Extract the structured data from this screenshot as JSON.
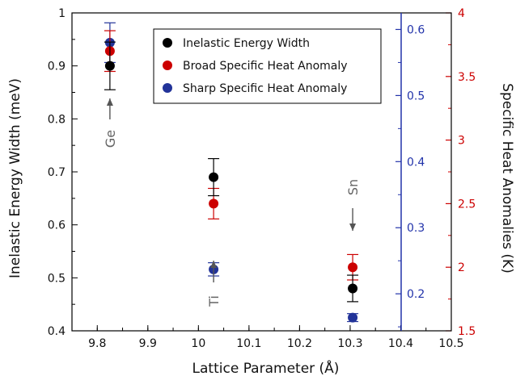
{
  "chart_data": {
    "type": "scatter",
    "xlabel": "Lattice Parameter (Å)",
    "ylabel_left": "Inelastic Energy Width (meV)",
    "ylabel_right_outer": "Specific Heat Anomalies (K)",
    "xlim": [
      9.75,
      10.5
    ],
    "xticks": [
      "9.8",
      "9.9",
      "10",
      "10.1",
      "10.2",
      "10.3",
      "10.4",
      "10.5"
    ],
    "axes": {
      "left": {
        "range": [
          0.4,
          1.0
        ],
        "ticks": [
          "0.4",
          "0.5",
          "0.6",
          "0.7",
          "0.8",
          "0.9",
          "1"
        ],
        "color": "#000000"
      },
      "right_inner": {
        "range": [
          0.144,
          0.625
        ],
        "ticks": [
          "0.2",
          "0.3",
          "0.4",
          "0.5",
          "0.6"
        ],
        "color": "#2233aa"
      },
      "right_outer": {
        "range": [
          1.5,
          4.0
        ],
        "ticks": [
          "1.5",
          "2",
          "2.5",
          "3",
          "3.5",
          "4"
        ],
        "color": "#cc0000"
      }
    },
    "series": [
      {
        "name": "Inelastic Energy Width",
        "color": "#000000",
        "axis": "left",
        "points": [
          {
            "x": 9.825,
            "y": 0.9,
            "err": 0.045
          },
          {
            "x": 10.03,
            "y": 0.69,
            "err": 0.035
          },
          {
            "x": 10.305,
            "y": 0.48,
            "err": 0.025
          }
        ]
      },
      {
        "name": "Broad Specific Heat Anomaly",
        "color": "#cc0000",
        "axis": "right_outer",
        "points": [
          {
            "x": 9.825,
            "y": 3.7,
            "err": 0.16
          },
          {
            "x": 10.03,
            "y": 2.5,
            "err": 0.12
          },
          {
            "x": 10.305,
            "y": 2.0,
            "err": 0.1
          }
        ]
      },
      {
        "name": "Sharp Specific Heat Anomaly",
        "color": "#223399",
        "axis": "right_inner",
        "points": [
          {
            "x": 9.825,
            "y": 0.58,
            "err": 0.03
          },
          {
            "x": 10.03,
            "y": 0.237,
            "err": 0.01
          },
          {
            "x": 10.305,
            "y": 0.164,
            "err": 0.006
          }
        ]
      }
    ],
    "annotations": [
      {
        "text": "Ge",
        "x": 9.825,
        "direction": "up"
      },
      {
        "text": "Ti",
        "x": 10.03,
        "direction": "up"
      },
      {
        "text": "Sn",
        "x": 10.305,
        "direction": "down"
      }
    ],
    "legend_placement": "top-center"
  }
}
